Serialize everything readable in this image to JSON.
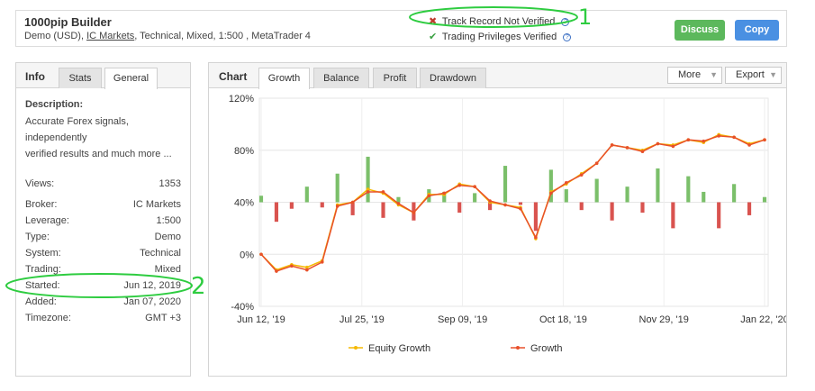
{
  "header": {
    "system_name": "1000pip Builder",
    "account_type": "Demo (USD), ",
    "broker": "IC Markets",
    "details_rest": ", Technical, Mixed, 1:500 , MetaTrader 4",
    "track_record": "Track Record Not Verified",
    "trading_privileges": "Trading Privileges Verified",
    "help_glyph": "?",
    "x_glyph": "✖",
    "check_glyph": "✔",
    "discuss_label": "Discuss",
    "copy_label": "Copy",
    "colors": {
      "discuss": "#5cb85c",
      "copy": "#4a90e2",
      "not_verified": "#c0392b",
      "verified": "#3aa142"
    }
  },
  "info": {
    "title": "Info",
    "tabs": [
      "Stats",
      "General"
    ],
    "active_tab": "General",
    "description_label": "Description:",
    "description_text": "Accurate Forex signals,\nindependently\nverified results and much more ...",
    "rows": [
      {
        "label": "Views:",
        "value": "1353"
      },
      {
        "label": "Broker:",
        "value": "IC Markets"
      },
      {
        "label": "Leverage:",
        "value": "1:500"
      },
      {
        "label": "Type:",
        "value": "Demo"
      },
      {
        "label": "System:",
        "value": "Technical"
      },
      {
        "label": "Trading:",
        "value": "Mixed"
      },
      {
        "label": "Started:",
        "value": "Jun 12, 2019"
      },
      {
        "label": "Added:",
        "value": "Jan 07, 2020"
      },
      {
        "label": "Timezone:",
        "value": "GMT +3"
      }
    ]
  },
  "chart": {
    "title": "Chart",
    "tabs": [
      "Growth",
      "Balance",
      "Profit",
      "Drawdown"
    ],
    "active_tab": "Growth",
    "more_label": "More",
    "export_label": "Export",
    "caret_glyph": "▼"
  },
  "annotations": {
    "mark_1": "1",
    "mark_2": "2",
    "color": "#2ecc40"
  },
  "chart_data": {
    "type": "line",
    "x": [
      "Jun 12, '19",
      "Jun 19, '19",
      "Jun 26, '19",
      "Jul 03, '19",
      "Jul 10, '19",
      "Jul 17, '19",
      "Jul 24, '19",
      "Jul 31, '19",
      "Aug 07, '19",
      "Aug 14, '19",
      "Aug 21, '19",
      "Aug 28, '19",
      "Sep 04, '19",
      "Sep 11, '19",
      "Sep 18, '19",
      "Sep 25, '19",
      "Oct 02, '19",
      "Oct 09, '19",
      "Oct 16, '19",
      "Oct 23, '19",
      "Oct 30, '19",
      "Nov 06, '19",
      "Nov 13, '19",
      "Nov 20, '19",
      "Nov 27, '19",
      "Dec 04, '19",
      "Dec 11, '19",
      "Dec 18, '19",
      "Dec 25, '19",
      "Jan 01, '20",
      "Jan 08, '20",
      "Jan 15, '20",
      "Jan 22, '20",
      "Jan 29, '20"
    ],
    "x_tick_labels": [
      "Jun 12, '19",
      "Jul 25, '19",
      "Sep 09, '19",
      "Oct 18, '19",
      "Nov 29, '19",
      "Jan 22, '20"
    ],
    "series": [
      {
        "name": "Equity Growth",
        "color": "#f5b800",
        "values": [
          0,
          -12,
          -8,
          -10,
          -5,
          38,
          40,
          50,
          47,
          38,
          32,
          46,
          46,
          54,
          52,
          40,
          38,
          36,
          12,
          48,
          54,
          62,
          70,
          84,
          82,
          80,
          85,
          84,
          88,
          86,
          92,
          90,
          85,
          88
        ]
      },
      {
        "name": "Growth",
        "color": "#e8502a",
        "values": [
          0,
          -13,
          -9,
          -12,
          -6,
          37,
          40,
          48,
          48,
          39,
          32,
          45,
          47,
          53,
          52,
          41,
          38,
          35,
          13,
          47,
          55,
          61,
          70,
          84,
          82,
          79,
          85,
          83,
          88,
          87,
          91,
          90,
          84,
          88
        ]
      }
    ],
    "bars": [
      5,
      -15,
      -5,
      12,
      -4,
      22,
      -10,
      35,
      -12,
      4,
      -14,
      10,
      8,
      -8,
      7,
      -6,
      28,
      -2,
      -22,
      25,
      10,
      -6,
      18,
      -14,
      12,
      -8,
      26,
      -20,
      20,
      8,
      -20,
      14,
      -10,
      4
    ],
    "bar_colors": {
      "positive": "#7bbf6a",
      "negative": "#d9534f"
    },
    "y_ticks": [
      "120%",
      "80%",
      "40%",
      "0%",
      "-40%"
    ],
    "ylim": [
      -40,
      120
    ],
    "grid": true,
    "legend": "bottom"
  }
}
